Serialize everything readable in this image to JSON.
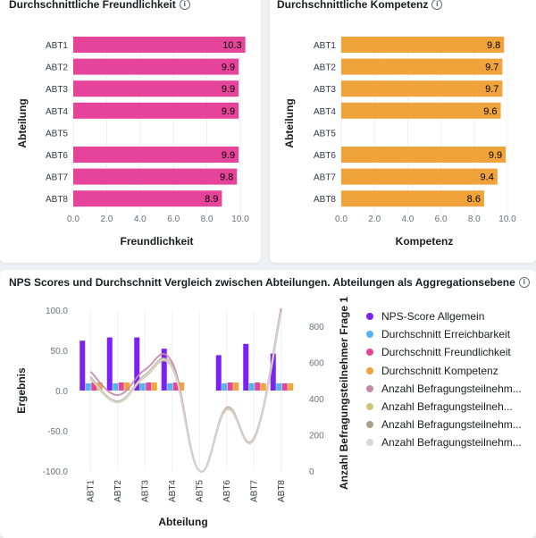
{
  "panels": {
    "friendliness": {
      "title": "Durchschnittliche Freundlichkeit",
      "info_icon": "info-icon"
    },
    "competence": {
      "title": "Durchschnittliche Kompetenz",
      "info_icon": "info-icon"
    },
    "nps": {
      "title": "NPS Scores und Durchschnitt Vergleich zwischen Abteilungen. Abteilungen als Aggregationsebene",
      "info_icon": "info-icon"
    }
  },
  "colors": {
    "friendliness": "#e6449a",
    "competence": "#f1a33b",
    "nps": "#7b21f2",
    "reachability": "#54b3f0",
    "participants_1": "#c88aa8",
    "participants_2": "#cfc67c",
    "participants_3": "#a8a08a",
    "participants_4": "#dcd6d6"
  },
  "chart_data": [
    {
      "type": "bar",
      "orientation": "horizontal",
      "categories": [
        "ABT1",
        "ABT2",
        "ABT3",
        "ABT4",
        "ABT5",
        "ABT6",
        "ABT7",
        "ABT8"
      ],
      "values": [
        10.3,
        9.9,
        9.9,
        9.9,
        null,
        9.9,
        9.8,
        8.9
      ],
      "value_labels": [
        "10.3",
        "9.9",
        "9.9",
        "9.9",
        "",
        "9.9",
        "9.8",
        "8.9"
      ],
      "xlabel": "Freundlichkeit",
      "ylabel": "Abteilung",
      "xlim": [
        0,
        10
      ],
      "xticks": [
        "0.0",
        "2.0",
        "4.0",
        "6.0",
        "8.0",
        "10.0"
      ]
    },
    {
      "type": "bar",
      "orientation": "horizontal",
      "categories": [
        "ABT1",
        "ABT2",
        "ABT3",
        "ABT4",
        "ABT5",
        "ABT6",
        "ABT7",
        "ABT8"
      ],
      "values": [
        9.8,
        9.7,
        9.7,
        9.6,
        null,
        9.9,
        9.4,
        8.6
      ],
      "value_labels": [
        "9.8",
        "9.7",
        "9.7",
        "9.6",
        "",
        "9.9",
        "9.4",
        "8.6"
      ],
      "xlabel": "Kompetenz",
      "ylabel": "Abteilung",
      "xlim": [
        0,
        10
      ],
      "xticks": [
        "0.0",
        "2.0",
        "4.0",
        "6.0",
        "8.0",
        "10.0"
      ]
    },
    {
      "type": "bar",
      "categories": [
        "ABT1",
        "ABT2",
        "ABT3",
        "ABT4",
        "ABT5",
        "ABT6",
        "ABT7",
        "ABT8"
      ],
      "xlabel": "Abteilung",
      "ylabel": "Ergebnis",
      "ylabel_right": "Anzahl Befragungsteilnehmer Frage 1",
      "ylim": [
        -100,
        100
      ],
      "yticks": [
        "100.0",
        "50.0",
        "0.0",
        "-50.0",
        "-100.0"
      ],
      "ylim_right": [
        0,
        890
      ],
      "yticks_right": [
        "800",
        "600",
        "400",
        "200",
        "0"
      ],
      "series": [
        {
          "name": "NPS-Score Allgemein",
          "axis": "left",
          "kind": "bar",
          "values": [
            62,
            66,
            66,
            52,
            null,
            44,
            58,
            46
          ]
        },
        {
          "name": "Durchschnitt Erreichbarkeit",
          "axis": "left",
          "kind": "bar",
          "values": [
            9,
            9,
            9,
            9,
            null,
            9,
            9,
            9
          ]
        },
        {
          "name": "Durchschnitt Freundlichkeit",
          "axis": "left",
          "kind": "bar",
          "values": [
            10,
            10,
            10,
            10,
            null,
            10,
            10,
            9
          ]
        },
        {
          "name": "Durchschnitt Kompetenz",
          "axis": "left",
          "kind": "bar",
          "values": [
            10,
            10,
            10,
            10,
            null,
            10,
            9,
            9
          ]
        },
        {
          "name": "Anzahl Befragungsteilnehm...",
          "axis": "right",
          "kind": "line",
          "values": [
            550,
            420,
            560,
            600,
            0,
            350,
            180,
            900
          ]
        },
        {
          "name": "Anzahl Befragungsteilneh...",
          "axis": "right",
          "kind": "line",
          "values": [
            510,
            380,
            520,
            570,
            0,
            345,
            175,
            880
          ]
        },
        {
          "name": "Anzahl Befragungsteilnehm...",
          "axis": "right",
          "kind": "line",
          "values": [
            520,
            385,
            530,
            580,
            0,
            340,
            178,
            885
          ]
        },
        {
          "name": "Anzahl Befragungsteilnehm...",
          "axis": "right",
          "kind": "line",
          "values": [
            515,
            382,
            525,
            575,
            0,
            342,
            176,
            882
          ]
        }
      ]
    }
  ]
}
